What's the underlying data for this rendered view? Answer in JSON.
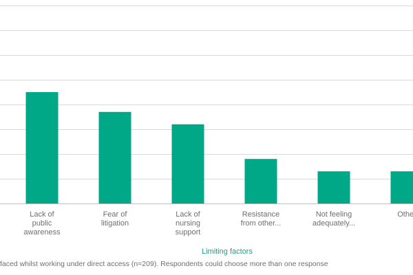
{
  "chart_data": {
    "type": "bar",
    "categories": [
      [
        "Lack of",
        "public",
        "awareness"
      ],
      [
        "Fear of",
        "litigation"
      ],
      [
        "Lack of",
        "nursing",
        "support"
      ],
      [
        "Resistance",
        "from other..."
      ],
      [
        "Not feeling",
        "adequately..."
      ],
      [
        "Other"
      ]
    ],
    "values": [
      45,
      37,
      32,
      18,
      13,
      13
    ],
    "ylim": [
      0,
      80
    ],
    "xlabel": "Limiting factors",
    "grid": true,
    "bar_color": "#00a887"
  },
  "caption": "faced whilst working under direct access (n=209). Respondents could choose more than one response"
}
